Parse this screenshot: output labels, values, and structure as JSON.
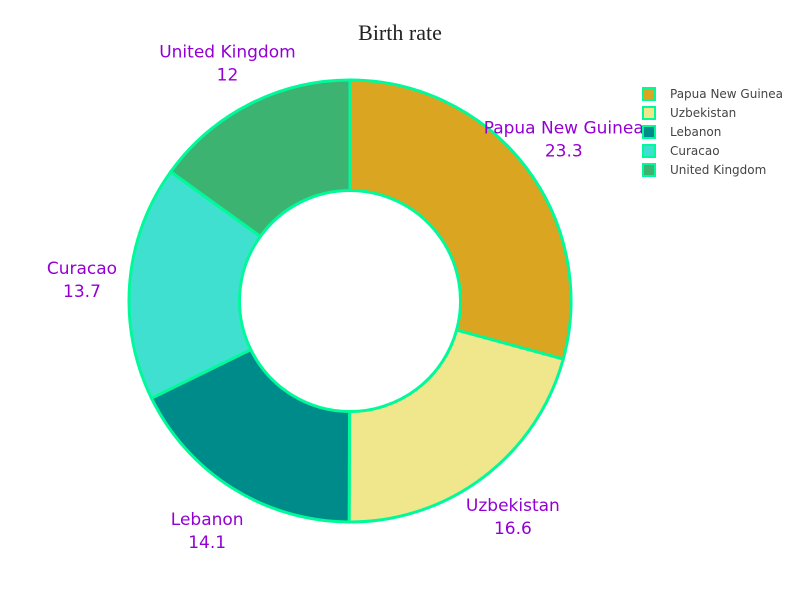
{
  "chart_data": {
    "type": "pie",
    "title": "Birth rate",
    "hole": 0.5,
    "label_color": "#9400D3",
    "slice_border_color": "#00FA9A",
    "labels": [
      "Papua New Guinea",
      "Uzbekistan",
      "Lebanon",
      "Curacao",
      "United Kingdom"
    ],
    "values": [
      23.3,
      16.6,
      14.1,
      13.7,
      12
    ],
    "colors": [
      "#DAA520",
      "#F0E68C",
      "#008B8B",
      "#40E0D0",
      "#3CB371"
    ],
    "legend": {
      "placement": "top-right",
      "entries": [
        "Papua New Guinea",
        "Uzbekistan",
        "Lebanon",
        "Curacao",
        "United Kingdom"
      ]
    }
  }
}
